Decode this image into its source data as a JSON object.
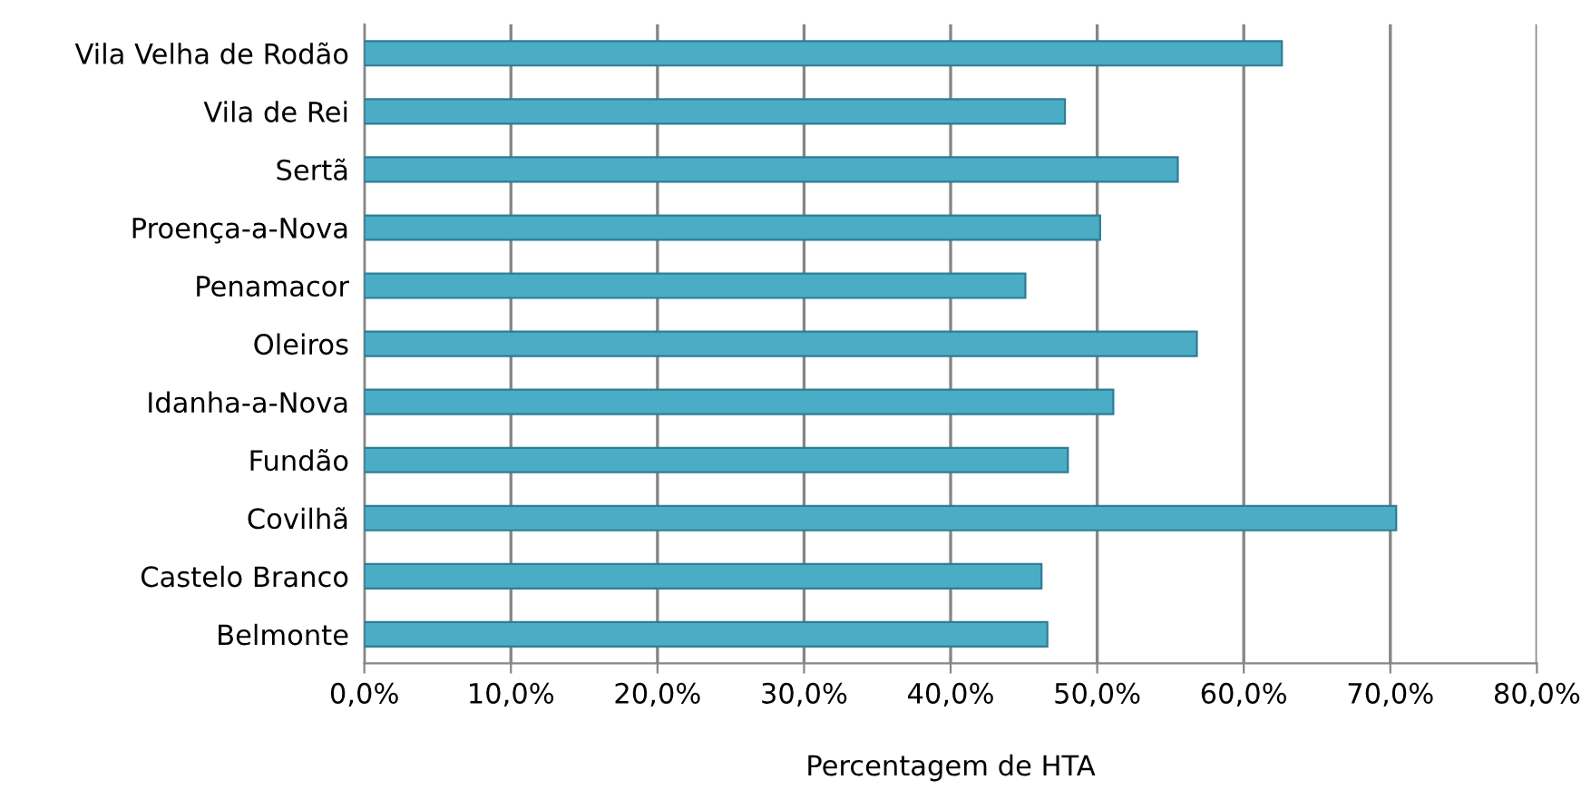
{
  "chart_data": {
    "type": "bar",
    "orientation": "horizontal",
    "xlabel": "Percentagem de HTA",
    "categories": [
      "Vila Velha de Rodão",
      "Vila de Rei",
      "Sertã",
      "Proença-a-Nova",
      "Penamacor",
      "Oleiros",
      "Idanha-a-Nova",
      "Fundão",
      "Covilhã",
      "Castelo Branco",
      "Belmonte"
    ],
    "values": [
      62.6,
      47.8,
      55.5,
      50.2,
      45.1,
      56.8,
      51.1,
      48.0,
      70.4,
      46.2,
      46.6
    ],
    "color": "#4bacc6",
    "xlim": [
      0,
      80
    ],
    "xticks": [
      {
        "value": 0,
        "label": "0,0%"
      },
      {
        "value": 10,
        "label": "10,0%"
      },
      {
        "value": 20,
        "label": "20,0%"
      },
      {
        "value": 30,
        "label": "30,0%"
      },
      {
        "value": 40,
        "label": "40,0%"
      },
      {
        "value": 50,
        "label": "50,0%"
      },
      {
        "value": 60,
        "label": "60,0%"
      },
      {
        "value": 70,
        "label": "70,0%"
      },
      {
        "value": 80,
        "label": "80,0%"
      }
    ],
    "grid": "x"
  }
}
